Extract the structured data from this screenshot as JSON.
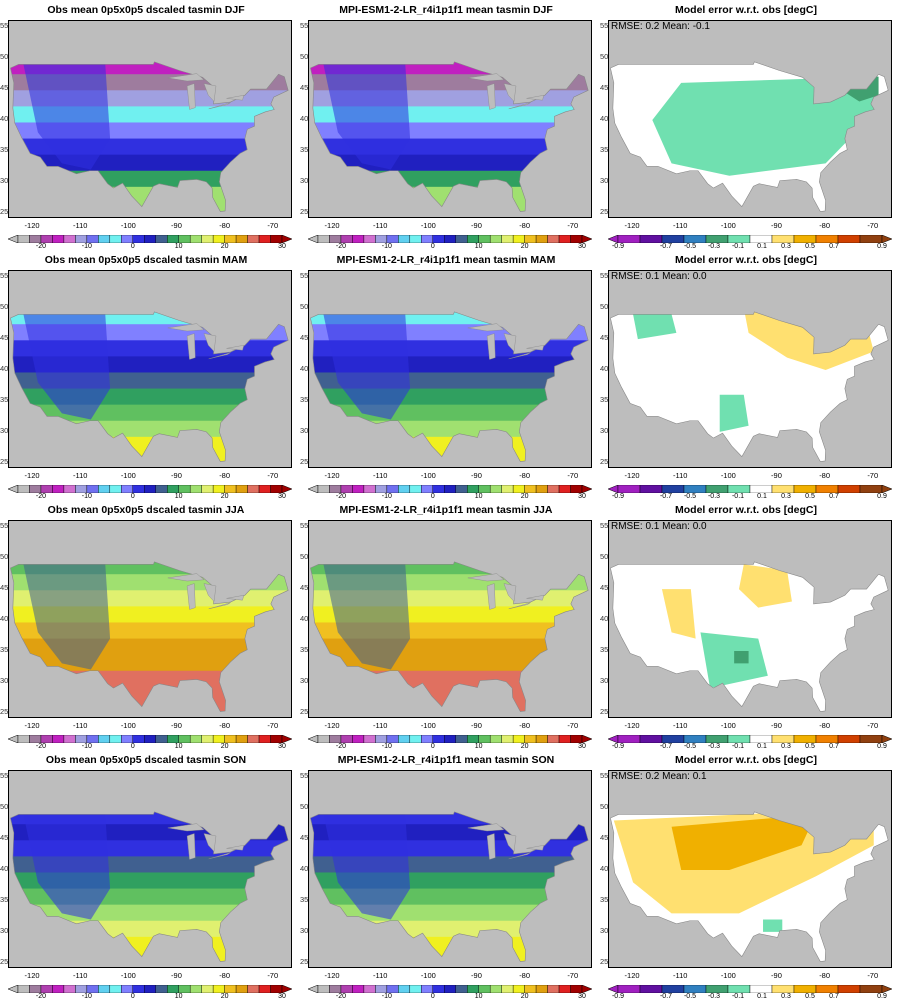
{
  "rows": [
    {
      "season": "DJF",
      "titles": [
        "Obs mean 0p5x0p5 dscaled tasmin DJF",
        "MPI-ESM1-2-LR_r4i1p1f1 mean tasmin DJF",
        "Model error w.r.t. obs [degC]"
      ],
      "stats": "RMSE: 0.2  Mean: -0.1"
    },
    {
      "season": "MAM",
      "titles": [
        "Obs mean 0p5x0p5 dscaled tasmin MAM",
        "MPI-ESM1-2-LR_r4i1p1f1 mean tasmin MAM",
        "Model error w.r.t. obs [degC]"
      ],
      "stats": "RMSE: 0.1  Mean: 0.0"
    },
    {
      "season": "JJA",
      "titles": [
        "Obs mean 0p5x0p5 dscaled tasmin JJA",
        "MPI-ESM1-2-LR_r4i1p1f1 mean tasmin JJA",
        "Model error w.r.t. obs [degC]"
      ],
      "stats": "RMSE: 0.1  Mean: 0.0"
    },
    {
      "season": "SON",
      "titles": [
        "Obs mean 0p5x0p5 dscaled tasmin SON",
        "MPI-ESM1-2-LR_r4i1p1f1 mean tasmin SON",
        "Model error w.r.t. obs [degC]"
      ],
      "stats": "RMSE: 0.2  Mean: 0.1"
    }
  ],
  "axes": {
    "lon_ticks": [
      "-120",
      "-110",
      "-100",
      "-90",
      "-80",
      "-70"
    ],
    "lat_ticks": [
      "55",
      "50",
      "45",
      "40",
      "35",
      "30",
      "25"
    ],
    "lon_range": [
      -125,
      -66
    ],
    "lat_range": [
      24,
      56
    ]
  },
  "colorbars": {
    "temp": {
      "labels": [
        "-20",
        "-10",
        "0",
        "10",
        "20",
        "30"
      ],
      "colors": [
        "#bdbdbd",
        "#9e7c9e",
        "#b040b0",
        "#c020c0",
        "#d070d0",
        "#a0a0e0",
        "#7070f0",
        "#60d0f0",
        "#70f0f0",
        "#8080ff",
        "#3030e0",
        "#2020c0",
        "#406090",
        "#30a060",
        "#60c060",
        "#a0e070",
        "#e0f070",
        "#f0f020",
        "#f0c020",
        "#e0a010",
        "#e07060",
        "#e02020",
        "#a00000"
      ]
    },
    "diff": {
      "labels": [
        "-0.9",
        "-0.7",
        "-0.5",
        "-0.3",
        "-0.1",
        "0.1",
        "0.3",
        "0.5",
        "0.7",
        "0.9"
      ],
      "colors": [
        "#a020c0",
        "#6010a0",
        "#2040a0",
        "#3080c0",
        "#40a070",
        "#70e0b0",
        "#ffffff",
        "#ffe070",
        "#f0b000",
        "#f08000",
        "#d04000",
        "#904010"
      ]
    }
  },
  "chart_data": [
    {
      "type": "heatmap",
      "title": "Obs mean 0p5x0p5 dscaled tasmin DJF",
      "variable": "tasmin",
      "units": "degC",
      "xlabel": "",
      "ylabel": "",
      "xlim": [
        -125,
        -66
      ],
      "ylim": [
        24,
        56
      ],
      "range": [
        -20,
        30
      ]
    },
    {
      "type": "heatmap",
      "title": "MPI-ESM1-2-LR_r4i1p1f1 mean tasmin DJF",
      "variable": "tasmin",
      "units": "degC",
      "xlim": [
        -125,
        -66
      ],
      "ylim": [
        24,
        56
      ],
      "range": [
        -20,
        30
      ]
    },
    {
      "type": "heatmap",
      "title": "Model error w.r.t. obs [degC]",
      "rmse": 0.2,
      "mean": -0.1,
      "range": [
        -0.9,
        0.9
      ]
    },
    {
      "type": "heatmap",
      "title": "Obs mean 0p5x0p5 dscaled tasmin MAM",
      "range": [
        -20,
        30
      ]
    },
    {
      "type": "heatmap",
      "title": "MPI-ESM1-2-LR_r4i1p1f1 mean tasmin MAM",
      "range": [
        -20,
        30
      ]
    },
    {
      "type": "heatmap",
      "title": "Model error w.r.t. obs [degC]",
      "rmse": 0.1,
      "mean": 0.0,
      "range": [
        -0.9,
        0.9
      ]
    },
    {
      "type": "heatmap",
      "title": "Obs mean 0p5x0p5 dscaled tasmin JJA",
      "range": [
        -20,
        30
      ]
    },
    {
      "type": "heatmap",
      "title": "MPI-ESM1-2-LR_r4i1p1f1 mean tasmin JJA",
      "range": [
        -20,
        30
      ]
    },
    {
      "type": "heatmap",
      "title": "Model error w.r.t. obs [degC]",
      "rmse": 0.1,
      "mean": 0.0,
      "range": [
        -0.9,
        0.9
      ]
    },
    {
      "type": "heatmap",
      "title": "Obs mean 0p5x0p5 dscaled tasmin SON",
      "range": [
        -20,
        30
      ]
    },
    {
      "type": "heatmap",
      "title": "MPI-ESM1-2-LR_r4i1p1f1 mean tasmin SON",
      "range": [
        -20,
        30
      ]
    },
    {
      "type": "heatmap",
      "title": "Model error w.r.t. obs [degC]",
      "rmse": 0.2,
      "mean": 0.1,
      "range": [
        -0.9,
        0.9
      ]
    }
  ]
}
